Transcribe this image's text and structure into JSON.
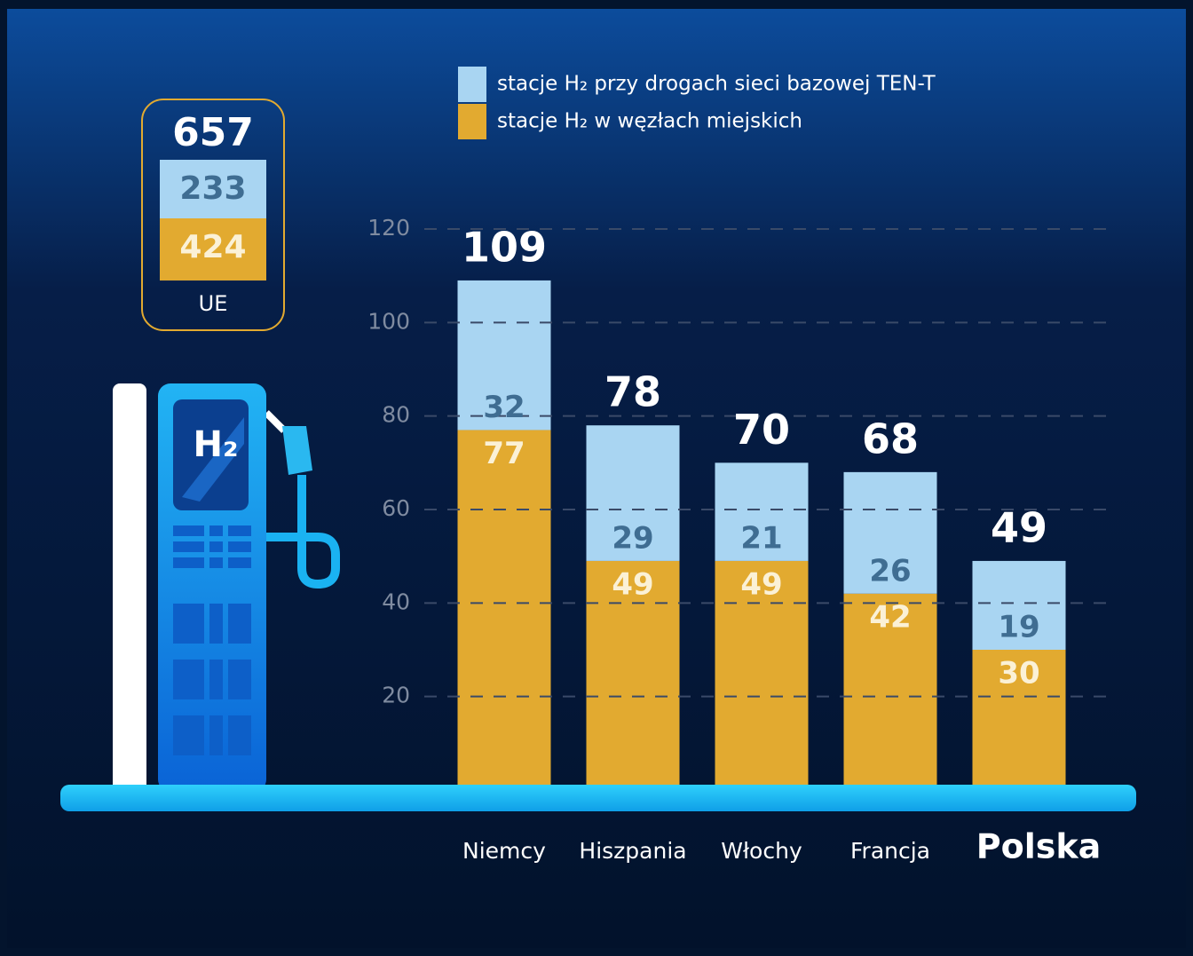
{
  "chart_data": {
    "type": "stacked_bar",
    "categories": [
      "Niemcy",
      "Hiszpania",
      "Włochy",
      "Francja",
      "Polska"
    ],
    "highlight": 4,
    "series": [
      {
        "name": "stacje H₂ przy drogach sieci bazowej TEN-T",
        "color": "#a9d5f2",
        "label_color": "#3f6d92",
        "values": [
          32,
          29,
          21,
          26,
          19
        ]
      },
      {
        "name": "stacje H₂ w węzłach miejskich",
        "color": "#e2aa30",
        "label_color": "#fbf1d6",
        "values": [
          77,
          49,
          49,
          42,
          30
        ]
      }
    ],
    "totals": [
      109,
      78,
      70,
      68,
      49
    ],
    "ylim": [
      0,
      120
    ],
    "yticks": [
      20,
      40,
      60,
      80,
      100,
      120
    ],
    "grid": true,
    "summary": {
      "label": "UE",
      "total": 657,
      "values": [
        233,
        424
      ]
    }
  },
  "illustration_label": "H₂"
}
